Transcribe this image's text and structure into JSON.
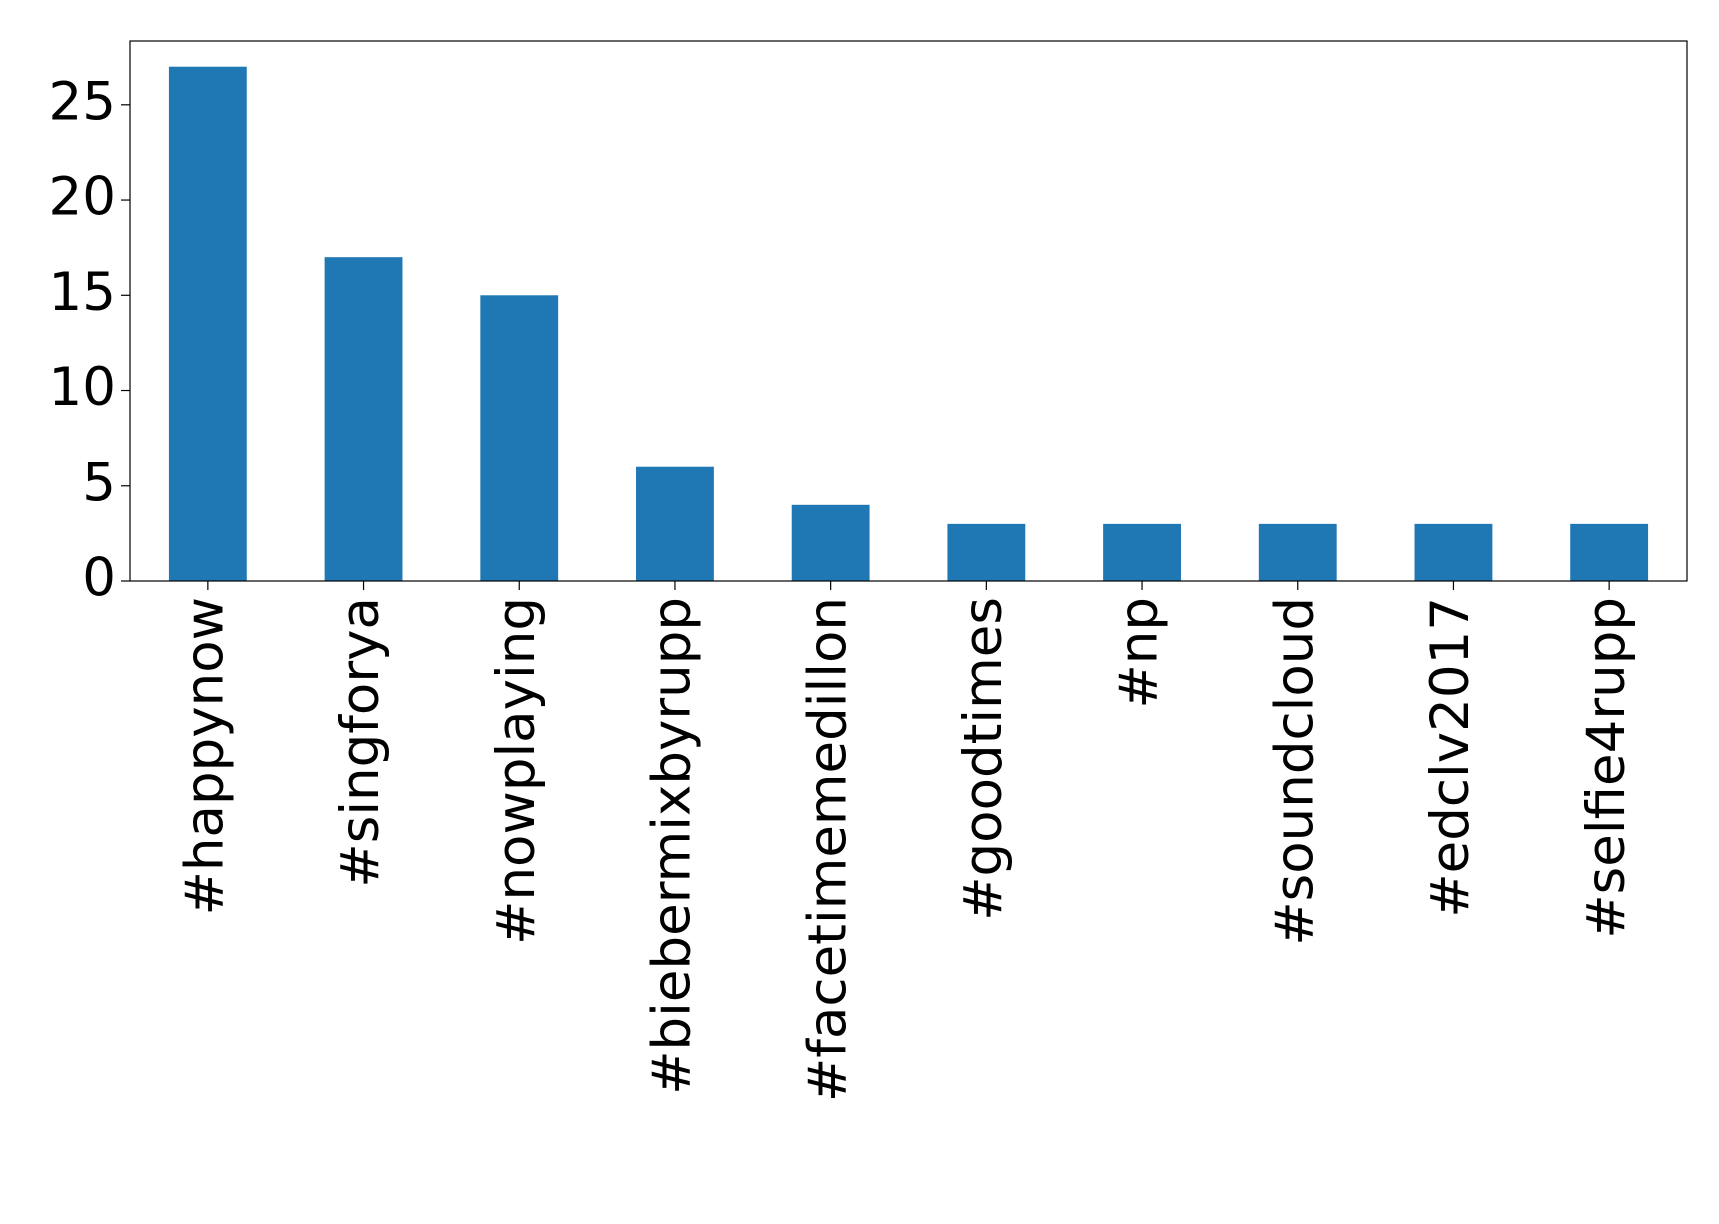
{
  "chart_data": {
    "type": "bar",
    "categories": [
      "#happynow",
      "#singforya",
      "#nowplaying",
      "#biebermixbyrupp",
      "#facetimemedillon",
      "#goodtimes",
      "#np",
      "#soundcloud",
      "#edclv2017",
      "#selfie4rupp"
    ],
    "values": [
      27,
      17,
      15,
      6,
      4,
      3,
      3,
      3,
      3,
      3
    ],
    "color": "#1f77b4",
    "ylim": [
      0,
      28.35
    ],
    "yticks": [
      0,
      5,
      10,
      15,
      20,
      25
    ],
    "grid": false
  }
}
